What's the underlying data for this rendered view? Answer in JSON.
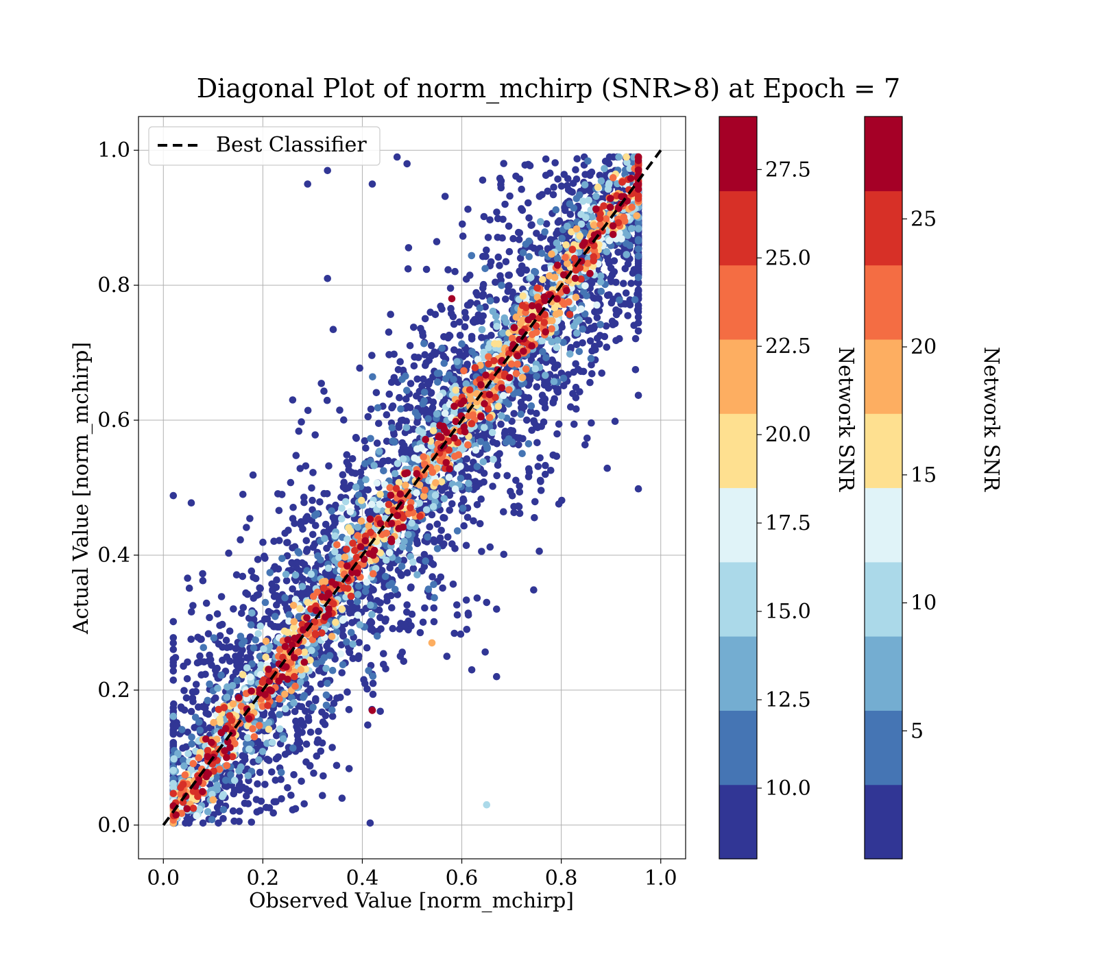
{
  "chart_data": {
    "type": "scatter",
    "title": "Diagonal Plot of norm_mchirp (SNR>8) at Epoch = 7",
    "xlabel": "Observed Value [norm_mchirp]",
    "ylabel": "Actual Value [norm_mchirp]",
    "xlim": [
      -0.05,
      1.05
    ],
    "ylim": [
      -0.05,
      1.05
    ],
    "xticks": [
      "0.0",
      "0.2",
      "0.4",
      "0.6",
      "0.8",
      "1.0"
    ],
    "yticks": [
      "0.0",
      "0.2",
      "0.4",
      "0.6",
      "0.8",
      "1.0"
    ],
    "grid": true,
    "legend": {
      "position": "top-left",
      "entries": [
        "Best Classifier"
      ]
    },
    "reference_line": {
      "name": "Best Classifier",
      "x": [
        0.0,
        1.0
      ],
      "y": [
        0.0,
        1.0
      ],
      "style": "dashed",
      "color": "#000000"
    },
    "point_count_estimate": "several thousand points scattered around the diagonal",
    "colormap": "RdYlBu_r",
    "colorbars": [
      {
        "label": "Network SNR",
        "range": [
          8.0,
          29.0
        ],
        "ticks": [
          "10.0",
          "12.5",
          "15.0",
          "17.5",
          "20.0",
          "22.5",
          "25.0",
          "27.5"
        ],
        "tick_values": [
          10.0,
          12.5,
          15.0,
          17.5,
          20.0,
          22.5,
          25.0,
          27.5
        ]
      },
      {
        "label": "Network SNR",
        "range": [
          0.0,
          29.0
        ],
        "ticks": [
          "5",
          "10",
          "15",
          "20",
          "25"
        ],
        "tick_values": [
          5,
          10,
          15,
          20,
          25
        ]
      }
    ],
    "colors": [
      "#313695",
      "#4575b4",
      "#74add1",
      "#abd9e9",
      "#e0f3f8",
      "#fee090",
      "#fdae61",
      "#f46d43",
      "#d73027",
      "#a50026"
    ],
    "outliers": [
      {
        "x": 0.16,
        "y": 0.49,
        "snr": 9
      },
      {
        "x": 0.26,
        "y": 0.63,
        "snr": 10
      },
      {
        "x": 0.33,
        "y": 0.81,
        "snr": 10
      },
      {
        "x": 0.29,
        "y": 0.95,
        "snr": 9
      },
      {
        "x": 0.33,
        "y": 0.97,
        "snr": 9
      },
      {
        "x": 0.42,
        "y": 0.95,
        "snr": 9
      },
      {
        "x": 0.47,
        "y": 0.99,
        "snr": 9
      },
      {
        "x": 0.49,
        "y": 0.98,
        "snr": 9
      },
      {
        "x": 0.65,
        "y": 0.03,
        "snr": 15
      },
      {
        "x": 0.67,
        "y": 0.22,
        "snr": 9
      },
      {
        "x": 0.62,
        "y": 0.23,
        "snr": 9
      },
      {
        "x": 0.57,
        "y": 0.25,
        "snr": 9
      },
      {
        "x": 0.61,
        "y": 0.29,
        "snr": 9
      },
      {
        "x": 0.65,
        "y": 0.33,
        "snr": 9
      },
      {
        "x": 0.67,
        "y": 0.32,
        "snr": 9
      },
      {
        "x": 0.54,
        "y": 0.27,
        "snr": 22
      },
      {
        "x": 0.58,
        "y": 0.78,
        "snr": 28
      },
      {
        "x": 0.42,
        "y": 0.17,
        "snr": 28
      },
      {
        "x": 0.75,
        "y": 0.61,
        "snr": 9
      }
    ]
  }
}
